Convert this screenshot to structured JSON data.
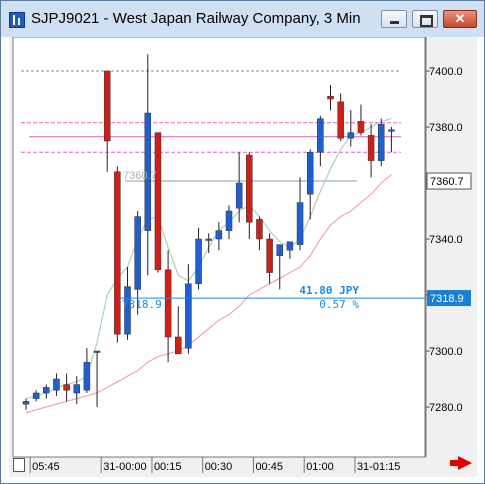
{
  "window": {
    "title": "SJPJ9021 - West Japan Railway Company, 3 Min"
  },
  "colors": {
    "up": "#1f5fcf",
    "down": "#d01f17",
    "ma_fast": "#a9d3b0",
    "ma_slow": "#f0a0c8",
    "measure": "#1a8bdc",
    "level_pink": "#e060c0",
    "level_gray": "#999999"
  },
  "price_tags": {
    "current": "7360.7",
    "measure_price": "7318.9"
  },
  "measure": {
    "amount": "41.80 JPY",
    "percent": "0.57 %",
    "label": "7318.9"
  },
  "ghost_label": "7360.7",
  "chart_data": {
    "type": "candlestick",
    "title": "SJPJ9021 - West Japan Railway Company, 3 Min",
    "ylim": [
      7276,
      7417
    ],
    "y_ticks": [
      7280.0,
      7300.0,
      7320.0,
      7340.0,
      7360.0,
      7380.0,
      7400.0
    ],
    "y_tick_labels": [
      "7280.0",
      "7300.0",
      "7320.0",
      "7340.0",
      "7360.0",
      "7380.0",
      "7400.0"
    ],
    "x_tick_labels": [
      {
        "label": "05:45",
        "i": 1
      },
      {
        "label": "31-00:00",
        "i": 8
      },
      {
        "label": "00:15",
        "i": 13
      },
      {
        "label": "00:30",
        "i": 18
      },
      {
        "label": "00:45",
        "i": 23
      },
      {
        "label": "01:00",
        "i": 28
      },
      {
        "label": "31-01:15",
        "i": 33
      }
    ],
    "candles": [
      {
        "o": 7281,
        "h": 7283,
        "l": 7279,
        "c": 7282
      },
      {
        "o": 7283,
        "h": 7286,
        "l": 7282,
        "c": 7285
      },
      {
        "o": 7285,
        "h": 7288,
        "l": 7283,
        "c": 7287
      },
      {
        "o": 7286,
        "h": 7292,
        "l": 7284,
        "c": 7290
      },
      {
        "o": 7288,
        "h": 7292,
        "l": 7282,
        "c": 7286
      },
      {
        "o": 7285,
        "h": 7291,
        "l": 7281,
        "c": 7288
      },
      {
        "o": 7286,
        "h": 7301,
        "l": 7285,
        "c": 7296
      },
      {
        "o": 7300,
        "h": 7300,
        "l": 7280,
        "c": 7300
      },
      {
        "o": 7400,
        "h": 7400,
        "l": 7364,
        "c": 7375
      },
      {
        "o": 7364,
        "h": 7366,
        "l": 7303,
        "c": 7306
      },
      {
        "o": 7306,
        "h": 7330,
        "l": 7304,
        "c": 7323
      },
      {
        "o": 7322,
        "h": 7350,
        "l": 7313,
        "c": 7348
      },
      {
        "o": 7343,
        "h": 7406,
        "l": 7327,
        "c": 7385
      },
      {
        "o": 7378,
        "h": 7378,
        "l": 7328,
        "c": 7329
      },
      {
        "o": 7329,
        "h": 7336,
        "l": 7296,
        "c": 7305
      },
      {
        "o": 7305,
        "h": 7316,
        "l": 7299,
        "c": 7299
      },
      {
        "o": 7301,
        "h": 7331,
        "l": 7299,
        "c": 7324
      },
      {
        "o": 7324,
        "h": 7344,
        "l": 7322,
        "c": 7340
      },
      {
        "o": 7340,
        "h": 7342,
        "l": 7335,
        "c": 7340
      },
      {
        "o": 7340,
        "h": 7346,
        "l": 7336,
        "c": 7343
      },
      {
        "o": 7343,
        "h": 7352,
        "l": 7340,
        "c": 7350
      },
      {
        "o": 7351,
        "h": 7371,
        "l": 7346,
        "c": 7360
      },
      {
        "o": 7370,
        "h": 7371,
        "l": 7340,
        "c": 7346
      },
      {
        "o": 7347,
        "h": 7348,
        "l": 7336,
        "c": 7340
      },
      {
        "o": 7340,
        "h": 7342,
        "l": 7324,
        "c": 7328
      },
      {
        "o": 7334,
        "h": 7338,
        "l": 7322,
        "c": 7338
      },
      {
        "o": 7336,
        "h": 7339,
        "l": 7333,
        "c": 7339
      },
      {
        "o": 7338,
        "h": 7362,
        "l": 7336,
        "c": 7353
      },
      {
        "o": 7356,
        "h": 7372,
        "l": 7347,
        "c": 7371
      },
      {
        "o": 7371,
        "h": 7384,
        "l": 7366,
        "c": 7383
      },
      {
        "o": 7391,
        "h": 7395,
        "l": 7386,
        "c": 7390
      },
      {
        "o": 7389,
        "h": 7392,
        "l": 7375,
        "c": 7376
      },
      {
        "o": 7376,
        "h": 7386,
        "l": 7373,
        "c": 7378
      },
      {
        "o": 7382,
        "h": 7388,
        "l": 7377,
        "c": 7378
      },
      {
        "o": 7377,
        "h": 7381,
        "l": 7362,
        "c": 7368
      },
      {
        "o": 7368,
        "h": 7383,
        "l": 7366,
        "c": 7381
      },
      {
        "o": 7379,
        "h": 7380,
        "l": 7371,
        "c": 7379
      }
    ],
    "ma_fast": [
      7283,
      7284,
      7285,
      7287,
      7288,
      7289,
      7291,
      7303,
      7320,
      7326,
      7330,
      7340,
      7347,
      7348,
      7337,
      7327,
      7325,
      7330,
      7337,
      7343,
      7346,
      7350,
      7352,
      7348,
      7343,
      7339,
      7337,
      7340,
      7348,
      7357,
      7365,
      7372,
      7377,
      7378,
      7380,
      7382,
      7383
    ],
    "ma_slow": [
      7278,
      7279,
      7280,
      7281,
      7282,
      7283,
      7284,
      7285,
      7287,
      7289,
      7291,
      7293,
      7296,
      7298,
      7299,
      7300,
      7302,
      7305,
      7308,
      7311,
      7313,
      7316,
      7320,
      7322,
      7324,
      7326,
      7328,
      7330,
      7334,
      7340,
      7345,
      7348,
      7350,
      7353,
      7356,
      7360,
      7363
    ],
    "levels": [
      {
        "price": 7400,
        "style": "gray-dash"
      },
      {
        "price": 7381.5,
        "style": "pink-dash"
      },
      {
        "price": 7376.5,
        "style": "pink-solid"
      },
      {
        "price": 7371,
        "style": "pink-dash"
      },
      {
        "price": 7360.7,
        "style": "gray-solid"
      }
    ]
  }
}
